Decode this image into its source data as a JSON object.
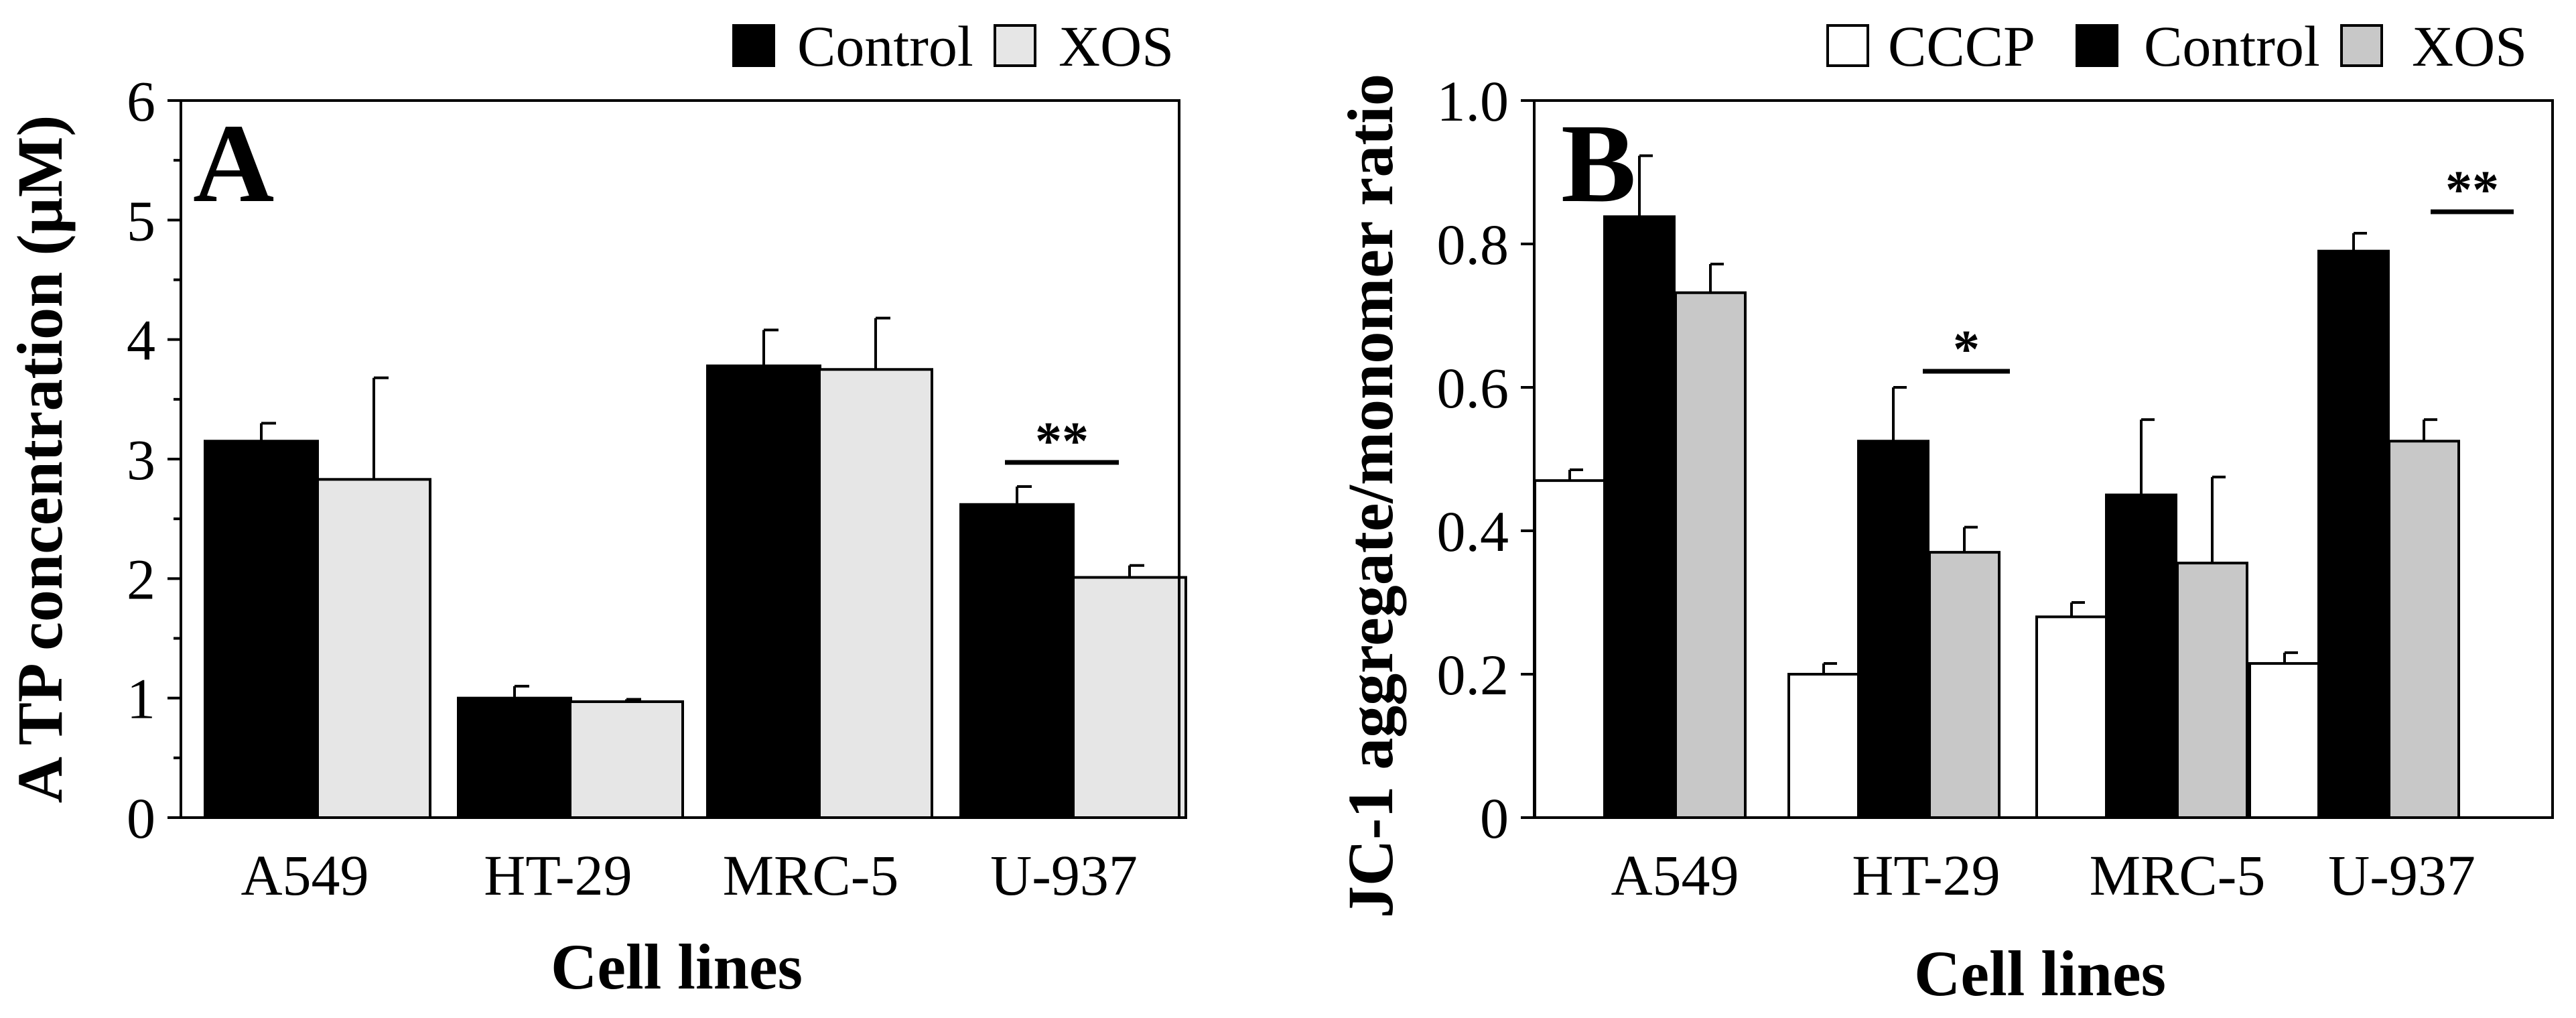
{
  "colors": {
    "CCCP": "#ffffff",
    "Control": "#000000",
    "XOS_A": "#e6e6e6",
    "XOS_B": "#c8c8c8",
    "stroke": "#000000"
  },
  "chart_data": [
    {
      "type": "bar",
      "panel": "A",
      "categories": [
        "A549",
        "HT-29",
        "MRC-5",
        "U-937"
      ],
      "series": [
        {
          "name": "Control",
          "color_key": "Control",
          "values": [
            3.15,
            1.0,
            3.78,
            2.62
          ],
          "errors": [
            0.15,
            0.1,
            0.3,
            0.15
          ]
        },
        {
          "name": "XOS",
          "color_key": "XOS_A",
          "values": [
            2.83,
            0.97,
            3.75,
            2.01
          ],
          "errors": [
            0.85,
            0.02,
            0.43,
            0.1
          ]
        }
      ],
      "xlabel": "Cell lines",
      "ylabel": "A TP concentration (µM)",
      "ylim": [
        0,
        6
      ],
      "yticks": [
        "0",
        "1",
        "2",
        "3",
        "4",
        "5",
        "6"
      ],
      "legend": [
        "Control",
        "XOS"
      ],
      "legend_position": "top-right",
      "annotations": [
        {
          "text": "**",
          "category": "U-937"
        }
      ]
    },
    {
      "type": "bar",
      "panel": "B",
      "categories": [
        "A549",
        "HT-29",
        "MRC-5",
        "U-937"
      ],
      "series": [
        {
          "name": "CCCP",
          "color_key": "CCCP",
          "values": [
            0.47,
            0.2,
            0.28,
            0.215
          ],
          "errors": [
            0.015,
            0.015,
            0.02,
            0.015
          ]
        },
        {
          "name": "Control",
          "color_key": "Control",
          "values": [
            0.838,
            0.525,
            0.45,
            0.79
          ],
          "errors": [
            0.085,
            0.075,
            0.105,
            0.025
          ]
        },
        {
          "name": "XOS",
          "color_key": "XOS_B",
          "values": [
            0.732,
            0.37,
            0.355,
            0.525
          ],
          "errors": [
            0.04,
            0.035,
            0.12,
            0.03
          ]
        }
      ],
      "xlabel": "Cell lines",
      "ylabel": "JC-1 aggregate/monomer ratio",
      "ylim": [
        0,
        1.0
      ],
      "yticks": [
        "0",
        "0.2",
        "0.4",
        "0.6",
        "0.8",
        "1.0"
      ],
      "legend": [
        "CCCP",
        "Control",
        "XOS"
      ],
      "legend_position": "top-right",
      "annotations": [
        {
          "text": "*",
          "category": "HT-29"
        },
        {
          "text": "**",
          "category": "U-937"
        }
      ]
    }
  ]
}
